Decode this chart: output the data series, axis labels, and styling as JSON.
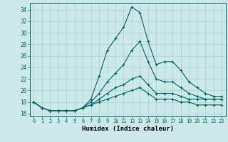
{
  "xlabel": "Humidex (Indice chaleur)",
  "background_color": "#cce8e8",
  "grid_color": "#aad0d0",
  "line_color": "#006666",
  "xlim": [
    -0.5,
    23.5
  ],
  "ylim": [
    15.5,
    35.2
  ],
  "xticks": [
    0,
    1,
    2,
    3,
    4,
    5,
    6,
    7,
    8,
    9,
    10,
    11,
    12,
    13,
    14,
    15,
    16,
    17,
    18,
    19,
    20,
    21,
    22,
    23
  ],
  "yticks": [
    16,
    18,
    20,
    22,
    24,
    26,
    28,
    30,
    32,
    34
  ],
  "series": [
    [
      18.0,
      17.0,
      16.5,
      16.5,
      16.5,
      16.5,
      17.0,
      18.5,
      22.5,
      27.0,
      29.0,
      31.0,
      34.5,
      33.5,
      28.5,
      24.5,
      25.0,
      25.0,
      23.5,
      21.5,
      20.5,
      19.5,
      19.0,
      19.0
    ],
    [
      18.0,
      17.0,
      16.5,
      16.5,
      16.5,
      16.5,
      17.0,
      18.0,
      19.5,
      21.5,
      23.0,
      24.5,
      27.0,
      28.5,
      25.0,
      22.0,
      21.5,
      21.5,
      20.5,
      19.5,
      19.0,
      18.5,
      18.5,
      18.5
    ],
    [
      18.0,
      17.0,
      16.5,
      16.5,
      16.5,
      16.5,
      17.0,
      17.5,
      18.5,
      19.5,
      20.5,
      21.0,
      22.0,
      22.5,
      21.0,
      19.5,
      19.5,
      19.5,
      19.0,
      18.5,
      18.5,
      18.5,
      18.5,
      18.5
    ],
    [
      18.0,
      17.0,
      16.5,
      16.5,
      16.5,
      16.5,
      17.0,
      17.5,
      18.0,
      18.5,
      19.0,
      19.5,
      20.0,
      20.5,
      19.5,
      18.5,
      18.5,
      18.5,
      18.0,
      18.0,
      17.5,
      17.5,
      17.5,
      17.5
    ]
  ]
}
